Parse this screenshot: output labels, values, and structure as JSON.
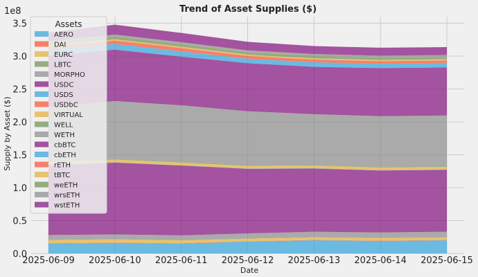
{
  "chart_data": {
    "type": "area",
    "stacked": true,
    "title": "Trend of Asset Supplies ($)",
    "xlabel": "Date",
    "ylabel": "Supply by Asset ($)",
    "y_offset_label": "1e8",
    "x": [
      "2025-06-09",
      "2025-06-10",
      "2025-06-11",
      "2025-06-12",
      "2025-06-13",
      "2025-06-14",
      "2025-06-15"
    ],
    "ylim": [
      0,
      3.6
    ],
    "yticks": [
      0.0,
      0.5,
      1.0,
      1.5,
      2.0,
      2.5,
      3.0,
      3.5
    ],
    "ytick_labels": [
      "0.0",
      "0.5",
      "1.0",
      "1.5",
      "2.0",
      "2.5",
      "3.0",
      "3.5"
    ],
    "grid": true,
    "legend_title": "Assets",
    "legend_position": "upper-left",
    "series": [
      {
        "name": "AERO",
        "color": "#30a2da",
        "values": [
          0.15,
          0.16,
          0.15,
          0.18,
          0.2,
          0.19,
          0.2
        ]
      },
      {
        "name": "DAI",
        "color": "#fc4f30",
        "values": [
          0.005,
          0.005,
          0.005,
          0.005,
          0.005,
          0.005,
          0.005
        ]
      },
      {
        "name": "EURC",
        "color": "#e5ae38",
        "values": [
          0.05,
          0.05,
          0.045,
          0.04,
          0.04,
          0.04,
          0.04
        ]
      },
      {
        "name": "LBTC",
        "color": "#6d904f",
        "values": [
          0.005,
          0.005,
          0.005,
          0.005,
          0.005,
          0.005,
          0.005
        ]
      },
      {
        "name": "MORPHO",
        "color": "#8b8b8b",
        "values": [
          0.07,
          0.07,
          0.07,
          0.075,
          0.08,
          0.08,
          0.08
        ]
      },
      {
        "name": "USDC",
        "color": "#810f7c",
        "values": [
          1.06,
          1.09,
          1.06,
          0.98,
          0.96,
          0.94,
          0.94
        ]
      },
      {
        "name": "USDS",
        "color": "#30a2da",
        "values": [
          0.005,
          0.005,
          0.005,
          0.005,
          0.005,
          0.005,
          0.005
        ]
      },
      {
        "name": "USDbC",
        "color": "#fc4f30",
        "values": [
          0.002,
          0.002,
          0.002,
          0.002,
          0.002,
          0.002,
          0.002
        ]
      },
      {
        "name": "VIRTUAL",
        "color": "#e5ae38",
        "values": [
          0.04,
          0.04,
          0.04,
          0.04,
          0.04,
          0.04,
          0.04
        ]
      },
      {
        "name": "WELL",
        "color": "#6d904f",
        "values": [
          0.01,
          0.01,
          0.01,
          0.01,
          0.01,
          0.01,
          0.01
        ]
      },
      {
        "name": "WETH",
        "color": "#8b8b8b",
        "values": [
          0.83,
          0.88,
          0.86,
          0.82,
          0.77,
          0.77,
          0.77
        ]
      },
      {
        "name": "cbBTC",
        "color": "#810f7c",
        "values": [
          0.78,
          0.78,
          0.74,
          0.73,
          0.72,
          0.73,
          0.73
        ]
      },
      {
        "name": "cbETH",
        "color": "#30a2da",
        "values": [
          0.09,
          0.09,
          0.08,
          0.07,
          0.07,
          0.07,
          0.07
        ]
      },
      {
        "name": "rETH",
        "color": "#fc4f30",
        "values": [
          0.05,
          0.05,
          0.05,
          0.04,
          0.04,
          0.035,
          0.035
        ]
      },
      {
        "name": "tBTC",
        "color": "#e5ae38",
        "values": [
          0.02,
          0.02,
          0.02,
          0.02,
          0.02,
          0.02,
          0.02
        ]
      },
      {
        "name": "weETH",
        "color": "#6d904f",
        "values": [
          0.03,
          0.04,
          0.04,
          0.035,
          0.035,
          0.035,
          0.035
        ]
      },
      {
        "name": "wrsETH",
        "color": "#8b8b8b",
        "values": [
          0.03,
          0.03,
          0.03,
          0.03,
          0.03,
          0.03,
          0.03
        ]
      },
      {
        "name": "wstETH",
        "color": "#810f7c",
        "values": [
          0.13,
          0.15,
          0.14,
          0.13,
          0.12,
          0.12,
          0.12
        ]
      }
    ]
  }
}
